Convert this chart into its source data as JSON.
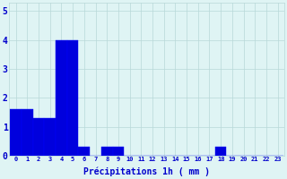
{
  "title": "",
  "xlabel": "Précipitations 1h ( mm )",
  "ylabel": "",
  "bar_color": "#0000dd",
  "bar_edge_color": "#0000ff",
  "background_color": "#dff4f4",
  "grid_color": "#b8d8d8",
  "text_color": "#0000cc",
  "ylim": [
    0,
    5.3
  ],
  "yticks": [
    0,
    1,
    2,
    3,
    4,
    5
  ],
  "categories": [
    0,
    1,
    2,
    3,
    4,
    5,
    6,
    7,
    8,
    9,
    10,
    11,
    12,
    13,
    14,
    15,
    16,
    17,
    18,
    19,
    20,
    21,
    22,
    23
  ],
  "values": [
    1.6,
    1.6,
    1.3,
    1.3,
    4.0,
    4.0,
    0.3,
    0.0,
    0.3,
    0.3,
    0.0,
    0.0,
    0.0,
    0.0,
    0.0,
    0.0,
    0.0,
    0.0,
    0.3,
    0.0,
    0.0,
    0.0,
    0.0,
    0.0
  ]
}
